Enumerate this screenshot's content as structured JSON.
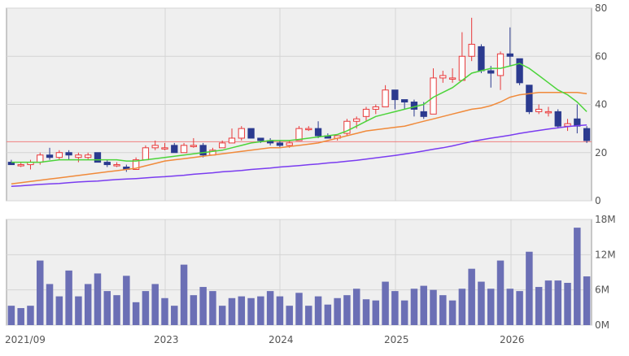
{
  "colors": {
    "panel_bg": "#efefef",
    "grid": "#d4d4d4",
    "axis": "#999999",
    "up_candle": "#e8393a",
    "down_candle": "#2b3a8f",
    "ma_short": "#4cd43a",
    "ma_mid": "#f08a3a",
    "ma_long": "#7a3cf0",
    "ref_line": "#f08080",
    "volume_bar": "#6b6fb5"
  },
  "chart_data": [
    {
      "type": "candlestick",
      "title": "",
      "x_tick_labels": [
        "2021/09",
        "2023",
        "2024",
        "2025",
        "2026"
      ],
      "ylim": [
        0,
        80
      ],
      "y_ticks": [
        0,
        20,
        40,
        60,
        80
      ],
      "grid": true,
      "reference_line": 24.5,
      "candles": [
        {
          "o": 16,
          "h": 17,
          "l": 15,
          "c": 15
        },
        {
          "o": 15,
          "h": 16,
          "l": 14,
          "c": 15
        },
        {
          "o": 15,
          "h": 17,
          "l": 13,
          "c": 16
        },
        {
          "o": 16,
          "h": 20,
          "l": 15,
          "c": 19
        },
        {
          "o": 19,
          "h": 22,
          "l": 17,
          "c": 18
        },
        {
          "o": 18,
          "h": 21,
          "l": 17,
          "c": 20
        },
        {
          "o": 20,
          "h": 21,
          "l": 17,
          "c": 19
        },
        {
          "o": 18,
          "h": 20,
          "l": 16,
          "c": 19
        },
        {
          "o": 18,
          "h": 20,
          "l": 17,
          "c": 19
        },
        {
          "o": 20,
          "h": 20,
          "l": 16,
          "c": 16
        },
        {
          "o": 16,
          "h": 17,
          "l": 14,
          "c": 15
        },
        {
          "o": 15,
          "h": 16,
          "l": 14,
          "c": 15
        },
        {
          "o": 14,
          "h": 15,
          "l": 12,
          "c": 13
        },
        {
          "o": 13,
          "h": 18,
          "l": 13,
          "c": 17
        },
        {
          "o": 17,
          "h": 23,
          "l": 17,
          "c": 22
        },
        {
          "o": 22,
          "h": 25,
          "l": 21,
          "c": 23
        },
        {
          "o": 22,
          "h": 24,
          "l": 21,
          "c": 22
        },
        {
          "o": 23,
          "h": 24,
          "l": 20,
          "c": 20
        },
        {
          "o": 20,
          "h": 24,
          "l": 20,
          "c": 23
        },
        {
          "o": 23,
          "h": 26,
          "l": 22,
          "c": 23
        },
        {
          "o": 23,
          "h": 24,
          "l": 18,
          "c": 19
        },
        {
          "o": 19,
          "h": 22,
          "l": 19,
          "c": 21
        },
        {
          "o": 22,
          "h": 25,
          "l": 22,
          "c": 24
        },
        {
          "o": 24,
          "h": 30,
          "l": 24,
          "c": 26
        },
        {
          "o": 26,
          "h": 31,
          "l": 25,
          "c": 30
        },
        {
          "o": 30,
          "h": 30,
          "l": 26,
          "c": 26
        },
        {
          "o": 26,
          "h": 26,
          "l": 24,
          "c": 25
        },
        {
          "o": 25,
          "h": 26,
          "l": 23,
          "c": 24
        },
        {
          "o": 24,
          "h": 25,
          "l": 22,
          "c": 23
        },
        {
          "o": 23,
          "h": 25,
          "l": 22,
          "c": 24
        },
        {
          "o": 25,
          "h": 31,
          "l": 25,
          "c": 30
        },
        {
          "o": 30,
          "h": 31,
          "l": 29,
          "c": 30
        },
        {
          "o": 30,
          "h": 33,
          "l": 26,
          "c": 27
        },
        {
          "o": 27,
          "h": 28,
          "l": 26,
          "c": 26
        },
        {
          "o": 26,
          "h": 27,
          "l": 25,
          "c": 27
        },
        {
          "o": 28,
          "h": 34,
          "l": 27,
          "c": 33
        },
        {
          "o": 33,
          "h": 35,
          "l": 30,
          "c": 34
        },
        {
          "o": 35,
          "h": 39,
          "l": 33,
          "c": 38
        },
        {
          "o": 38,
          "h": 40,
          "l": 36,
          "c": 39
        },
        {
          "o": 39,
          "h": 48,
          "l": 39,
          "c": 46
        },
        {
          "o": 46,
          "h": 46,
          "l": 38,
          "c": 42
        },
        {
          "o": 42,
          "h": 42,
          "l": 38,
          "c": 41
        },
        {
          "o": 41,
          "h": 42,
          "l": 35,
          "c": 38
        },
        {
          "o": 37,
          "h": 41,
          "l": 34,
          "c": 35
        },
        {
          "o": 36,
          "h": 55,
          "l": 36,
          "c": 51
        },
        {
          "o": 51,
          "h": 54,
          "l": 49,
          "c": 52
        },
        {
          "o": 51,
          "h": 55,
          "l": 49,
          "c": 51
        },
        {
          "o": 50,
          "h": 70,
          "l": 50,
          "c": 60
        },
        {
          "o": 60,
          "h": 76,
          "l": 58,
          "c": 65
        },
        {
          "o": 64,
          "h": 65,
          "l": 53,
          "c": 54
        },
        {
          "o": 54,
          "h": 56,
          "l": 47,
          "c": 53
        },
        {
          "o": 52,
          "h": 62,
          "l": 46,
          "c": 61
        },
        {
          "o": 61,
          "h": 72,
          "l": 56,
          "c": 60
        },
        {
          "o": 59,
          "h": 59,
          "l": 48,
          "c": 49
        },
        {
          "o": 48,
          "h": 48,
          "l": 36,
          "c": 37
        },
        {
          "o": 37,
          "h": 40,
          "l": 36,
          "c": 38
        },
        {
          "o": 37,
          "h": 39,
          "l": 35,
          "c": 37
        },
        {
          "o": 37,
          "h": 38,
          "l": 30,
          "c": 31
        },
        {
          "o": 31,
          "h": 34,
          "l": 29,
          "c": 32
        },
        {
          "o": 34,
          "h": 40,
          "l": 28,
          "c": 31
        },
        {
          "o": 30,
          "h": 31,
          "l": 24,
          "c": 25
        }
      ],
      "ma_short": [
        16,
        16,
        16,
        16,
        16.5,
        17,
        17,
        17,
        17,
        17,
        17,
        17,
        16.5,
        16.5,
        17,
        17.5,
        18,
        18.5,
        19,
        19.5,
        20,
        20.5,
        21,
        22,
        23,
        24,
        24.5,
        25,
        25,
        25,
        25.5,
        26,
        26.5,
        27,
        27.5,
        29,
        31,
        33,
        35,
        36,
        37,
        38,
        39,
        40,
        43,
        45,
        47,
        50,
        53,
        54,
        55,
        55,
        56,
        57,
        55,
        52,
        49,
        46,
        44,
        41,
        37
      ],
      "ma_mid": [
        7,
        7.5,
        8,
        8.5,
        9,
        9.5,
        10,
        10.5,
        11,
        11.5,
        12,
        12.5,
        13,
        13.5,
        14.5,
        15.5,
        16.5,
        17,
        17.5,
        18,
        18.5,
        19,
        19.5,
        20,
        20.5,
        21,
        21.5,
        22,
        22,
        22.5,
        23,
        23.5,
        24,
        25,
        26,
        27,
        28,
        29,
        29.5,
        30,
        30.5,
        31,
        32,
        33,
        34,
        35,
        36,
        37,
        38,
        38.5,
        39.5,
        41,
        43,
        44,
        44.5,
        45,
        45,
        45,
        45,
        45,
        44.5
      ],
      "ma_long": [
        6,
        6.2,
        6.5,
        6.8,
        7,
        7.2,
        7.5,
        7.8,
        8,
        8.2,
        8.5,
        8.8,
        9,
        9.2,
        9.5,
        9.8,
        10,
        10.3,
        10.6,
        11,
        11.3,
        11.6,
        12,
        12.3,
        12.6,
        13,
        13.3,
        13.6,
        14,
        14.3,
        14.6,
        15,
        15.3,
        15.7,
        16,
        16.4,
        16.8,
        17.3,
        17.8,
        18.3,
        18.8,
        19.4,
        20,
        20.7,
        21.4,
        22,
        22.8,
        23.7,
        24.6,
        25.3,
        26,
        26.6,
        27.2,
        28,
        28.6,
        29.2,
        29.8,
        30.3,
        30.8,
        31.2,
        31.5
      ]
    },
    {
      "type": "bar",
      "title": "",
      "ylim": [
        0,
        18
      ],
      "y_tick_labels": [
        "0M",
        "6M",
        "12M",
        "18M"
      ],
      "y_ticks": [
        0,
        6,
        12,
        18
      ],
      "grid": true,
      "unit": "M",
      "values": [
        3.3,
        2.9,
        3.3,
        11,
        7,
        4.9,
        9.3,
        4.9,
        7,
        8.8,
        5.8,
        5.1,
        8.4,
        3.9,
        5.8,
        7,
        4.6,
        3.3,
        10.3,
        5.1,
        6.5,
        5.8,
        3.3,
        4.6,
        4.9,
        4.6,
        4.9,
        5.8,
        4.9,
        3.3,
        5.5,
        3.3,
        4.9,
        3.5,
        4.6,
        5.1,
        6.2,
        4.4,
        4.2,
        7.4,
        5.8,
        4.2,
        6.2,
        6.7,
        6,
        5.1,
        4.2,
        6.2,
        9.6,
        7.4,
        6.2,
        11,
        6.2,
        5.8,
        12.5,
        6.5,
        7.6,
        7.6,
        7.2,
        16.6,
        8.3
      ]
    }
  ]
}
